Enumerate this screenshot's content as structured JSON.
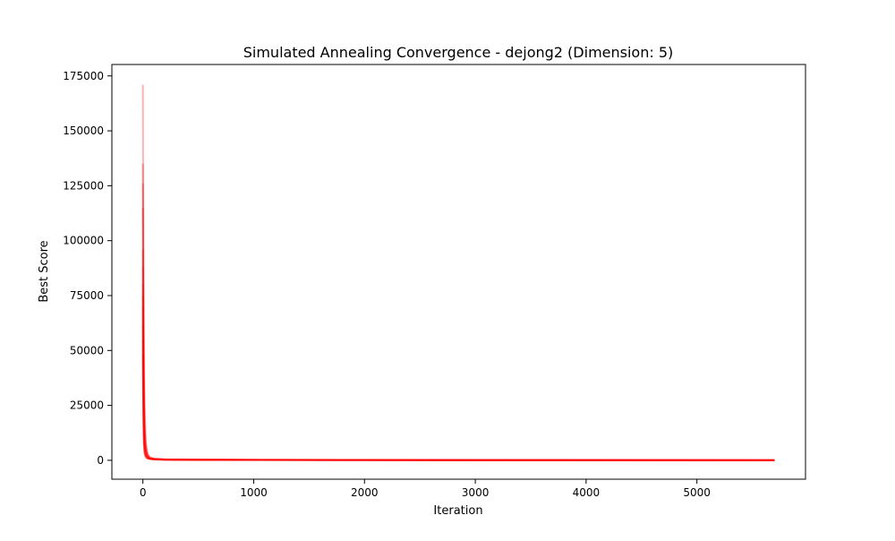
{
  "chart_data": {
    "type": "line",
    "title": "Simulated Annealing Convergence - dejong2 (Dimension: 5)",
    "xlabel": "Iteration",
    "ylabel": "Best Score",
    "xlim": [
      -280,
      5980
    ],
    "ylim": [
      -8600,
      180200
    ],
    "xticks": [
      0,
      1000,
      2000,
      3000,
      4000,
      5000
    ],
    "yticks": [
      0,
      25000,
      50000,
      75000,
      100000,
      125000,
      150000,
      175000
    ],
    "grid": false,
    "legend": null,
    "series_color": "#ff0000",
    "series": [
      {
        "x": [
          0,
          3,
          8,
          15,
          25,
          40,
          60,
          100,
          200,
          500,
          1000,
          2000,
          3000,
          4000,
          5000,
          5700
        ],
        "y": [
          171000,
          115000,
          60000,
          25000,
          9000,
          3500,
          1500,
          800,
          450,
          300,
          230,
          180,
          140,
          110,
          80,
          60
        ],
        "opacity": 0.3
      },
      {
        "x": [
          0,
          3,
          8,
          15,
          25,
          40,
          60,
          100,
          200,
          500,
          1000,
          2000,
          3000,
          4000,
          5000,
          5700
        ],
        "y": [
          135000,
          90000,
          45000,
          18000,
          7000,
          2800,
          1200,
          700,
          400,
          280,
          220,
          170,
          130,
          100,
          70,
          50
        ],
        "opacity": 0.3
      },
      {
        "x": [
          0,
          3,
          8,
          15,
          25,
          40,
          60,
          100,
          200,
          500,
          1000,
          2000,
          3000,
          4000,
          5000,
          5700
        ],
        "y": [
          126000,
          80000,
          38000,
          15000,
          6000,
          2500,
          1100,
          650,
          380,
          260,
          210,
          160,
          120,
          90,
          60,
          45
        ],
        "opacity": 0.3
      },
      {
        "x": [
          0,
          3,
          8,
          15,
          25,
          40,
          60,
          100,
          200,
          500,
          1000,
          2000,
          3000,
          4000,
          5000,
          5700
        ],
        "y": [
          115000,
          70000,
          32000,
          12000,
          5000,
          2200,
          1000,
          600,
          360,
          250,
          200,
          150,
          110,
          85,
          55,
          40
        ],
        "opacity": 0.3
      },
      {
        "x": [
          0,
          3,
          8,
          15,
          25,
          40,
          60,
          100,
          200,
          500,
          1000,
          2000,
          3000,
          4000,
          5000,
          5700
        ],
        "y": [
          96000,
          55000,
          25000,
          10000,
          4000,
          1900,
          900,
          550,
          340,
          240,
          190,
          140,
          100,
          80,
          50,
          35
        ],
        "opacity": 0.3
      },
      {
        "x": [
          0,
          3,
          8,
          15,
          25,
          40,
          60,
          100,
          200,
          500,
          1000,
          2000,
          3000,
          4000,
          5000,
          5700
        ],
        "y": [
          88000,
          48000,
          20000,
          8000,
          3500,
          1700,
          850,
          520,
          320,
          230,
          180,
          130,
          95,
          75,
          45,
          30
        ],
        "opacity": 0.3
      },
      {
        "x": [
          0,
          3,
          8,
          15,
          25,
          40,
          60,
          100,
          200,
          500,
          1000,
          2000,
          3000,
          4000,
          5000,
          5700
        ],
        "y": [
          80000,
          42000,
          17000,
          7000,
          3000,
          1500,
          800,
          500,
          300,
          220,
          170,
          125,
          90,
          70,
          42,
          28
        ],
        "opacity": 0.3
      },
      {
        "x": [
          0,
          3,
          8,
          15,
          25,
          40,
          60,
          100,
          200,
          500,
          1000,
          2000,
          3000,
          4000,
          5000,
          5700
        ],
        "y": [
          75000,
          38000,
          15000,
          6000,
          2600,
          1300,
          750,
          480,
          290,
          210,
          165,
          120,
          85,
          65,
          40,
          25
        ],
        "opacity": 0.3
      },
      {
        "x": [
          0,
          3,
          8,
          15,
          25,
          40,
          60,
          100,
          200,
          500,
          1000,
          2000,
          3000,
          4000,
          5000,
          5700
        ],
        "y": [
          70000,
          35000,
          13000,
          5000,
          2200,
          1100,
          700,
          460,
          280,
          200,
          160,
          115,
          80,
          60,
          38,
          22
        ],
        "opacity": 0.3
      },
      {
        "x": [
          0,
          3,
          8,
          15,
          25,
          40,
          60,
          100,
          200,
          500,
          1000,
          2000,
          3000,
          4000,
          5000,
          5700
        ],
        "y": [
          62000,
          30000,
          11000,
          4200,
          1900,
          1000,
          650,
          440,
          270,
          195,
          155,
          110,
          78,
          58,
          36,
          20
        ],
        "opacity": 0.3
      },
      {
        "x": [
          0,
          3,
          8,
          15,
          25,
          40,
          60,
          100,
          200,
          500,
          1000,
          2000,
          3000,
          4000,
          5000,
          5700
        ],
        "y": [
          55000,
          26000,
          9000,
          3600,
          1600,
          900,
          600,
          420,
          260,
          190,
          150,
          105,
          75,
          55,
          34,
          18
        ],
        "opacity": 0.3
      },
      {
        "x": [
          0,
          3,
          8,
          15,
          25,
          40,
          60,
          100,
          200,
          500,
          1000,
          2000,
          3000,
          4000,
          5000,
          5700
        ],
        "y": [
          48000,
          22000,
          7500,
          3000,
          1400,
          800,
          550,
          400,
          250,
          185,
          145,
          100,
          72,
          52,
          32,
          16
        ],
        "opacity": 0.3
      }
    ]
  }
}
